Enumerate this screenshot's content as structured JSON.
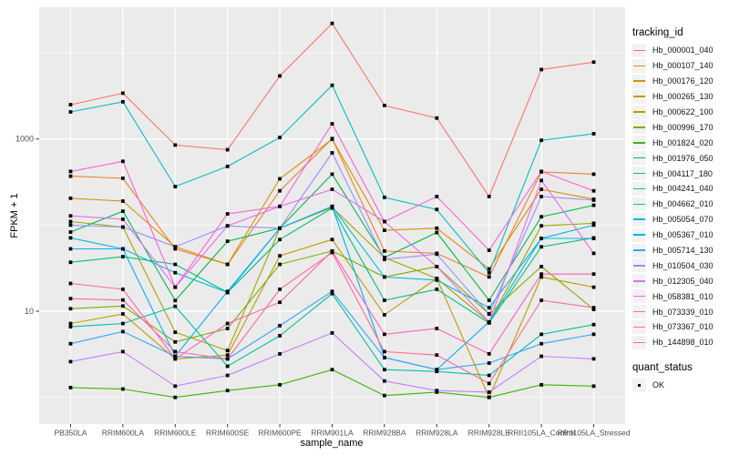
{
  "figure": {
    "background": "#FFFFFF",
    "panel_background": "#EBEBEB",
    "grid_color": "#FFFFFF",
    "axis_text_color": "#4D4D4D",
    "tick_color": "#333333",
    "point_color": "#000000"
  },
  "chart_data": {
    "type": "line",
    "title": "",
    "xlabel": "sample_name",
    "ylabel": "FPKM + 1",
    "y_scale": "log10",
    "ylim": [
      0.49,
      33800
    ],
    "y_ticks": [
      {
        "value": 10,
        "label": "10"
      },
      {
        "value": 1000,
        "label": "1000"
      }
    ],
    "y_minor_gridlines": [
      1,
      100,
      10000
    ],
    "grid": "on",
    "legend_position": "right",
    "point_shape": "square",
    "x_categories": [
      "PB350LA",
      "RRIM600LA",
      "RRIM600LE",
      "RRIM600SE",
      "RRIM600PE",
      "RRIM901LA",
      "RRIM928BA",
      "RRIM928LA",
      "RRIM928LE",
      "RRII105LA_Control",
      "RRII105LA_Stressed"
    ],
    "legend": {
      "title": "tracking_id"
    },
    "legend2": {
      "title": "quant_status",
      "items": [
        {
          "label": "OK"
        }
      ]
    },
    "series": [
      {
        "name": "Hb_000001_040",
        "color": "#F8766D",
        "values": [
          2500,
          3400,
          850,
          750,
          5400,
          22000,
          2450,
          1750,
          215,
          6400,
          7800
        ]
      },
      {
        "name": "Hb_000107_140",
        "color": "#EA8331",
        "values": [
          370,
          350,
          53,
          35,
          250,
          1010,
          50,
          47,
          25,
          415,
          390
        ]
      },
      {
        "name": "Hb_000176_120",
        "color": "#D89000",
        "values": [
          205,
          190,
          56,
          35,
          345,
          990,
          87,
          92,
          31,
          260,
          200
        ]
      },
      {
        "name": "Hb_000265_130",
        "color": "#C09B00",
        "values": [
          7.2,
          9.3,
          2.8,
          3.1,
          44,
          68,
          9.1,
          24,
          1.0,
          25,
          19
        ]
      },
      {
        "name": "Hb_000622_100",
        "color": "#A3A500",
        "values": [
          110,
          95,
          5.7,
          3.5,
          92,
          160,
          42,
          24,
          7.5,
          98,
          105
        ]
      },
      {
        "name": "Hb_000996_170",
        "color": "#7CAE00",
        "values": [
          10.7,
          11.5,
          4.4,
          6.3,
          35,
          50,
          25,
          33,
          9.3,
          33,
          10.5
        ]
      },
      {
        "name": "Hb_001824_020",
        "color": "#39B600",
        "values": [
          1.3,
          1.25,
          1.0,
          1.2,
          1.4,
          2.1,
          1.05,
          1.15,
          1.0,
          1.4,
          1.35
        ]
      },
      {
        "name": "Hb_001976_050",
        "color": "#00BB4E",
        "values": [
          83,
          145,
          13.3,
          65,
          92,
          390,
          42,
          82,
          13.4,
          125,
          170
        ]
      },
      {
        "name": "Hb_004117_180",
        "color": "#00BF7D",
        "values": [
          37,
          43,
          35,
          16.5,
          68,
          158,
          13.4,
          18,
          7.3,
          56,
          71
        ]
      },
      {
        "name": "Hb_004241_040",
        "color": "#00C1A3",
        "values": [
          6.6,
          7.2,
          11.4,
          2.3,
          5.2,
          16,
          2.1,
          2.0,
          1.8,
          5.4,
          7.0
        ]
      },
      {
        "name": "Hb_004662_010",
        "color": "#00BFC4",
        "values": [
          2060,
          2700,
          280,
          480,
          1040,
          4200,
          210,
          152,
          28,
          965,
          1150
        ]
      },
      {
        "name": "Hb_005054_070",
        "color": "#00BBDA",
        "values": [
          71,
          53,
          28,
          16.5,
          92,
          165,
          25,
          23,
          11,
          70,
          70
        ]
      },
      {
        "name": "Hb_005367_010",
        "color": "#00B0F6",
        "values": [
          53,
          53,
          3.0,
          17,
          92,
          165,
          2.9,
          2.1,
          7.5,
          70,
          100
        ]
      },
      {
        "name": "Hb_005714_130",
        "color": "#35A2FF",
        "values": [
          4.2,
          5.8,
          3.0,
          2.8,
          6.8,
          17,
          2.9,
          2.1,
          2.5,
          4.2,
          5.4
        ]
      },
      {
        "name": "Hb_010504_030",
        "color": "#9590FF",
        "values": [
          100,
          95,
          56,
          98,
          92,
          690,
          40,
          46,
          9.3,
          215,
          195
        ]
      },
      {
        "name": "Hb_012305_040",
        "color": "#C77CFF",
        "values": [
          2.6,
          3.4,
          1.35,
          1.8,
          3.2,
          5.6,
          1.55,
          1.2,
          1.15,
          3.0,
          2.8
        ]
      },
      {
        "name": "Hb_058381_010",
        "color": "#E76BF3",
        "values": [
          128,
          117,
          19,
          98,
          165,
          260,
          110,
          33,
          7.5,
          330,
          47
        ]
      },
      {
        "name": "Hb_073339_010",
        "color": "#FA62DB",
        "values": [
          420,
          550,
          19,
          135,
          165,
          1500,
          110,
          215,
          51,
          420,
          250
        ]
      },
      {
        "name": "Hb_073367_010",
        "color": "#FF62BC",
        "values": [
          21,
          18,
          2.8,
          7.2,
          12.7,
          50,
          5.4,
          6.3,
          3.2,
          27,
          27
        ]
      },
      {
        "name": "Hb_144898_010",
        "color": "#FF6A98",
        "values": [
          14,
          13.5,
          3.4,
          2.8,
          18,
          48,
          3.4,
          3.1,
          1.45,
          13.4,
          11
        ]
      }
    ]
  }
}
